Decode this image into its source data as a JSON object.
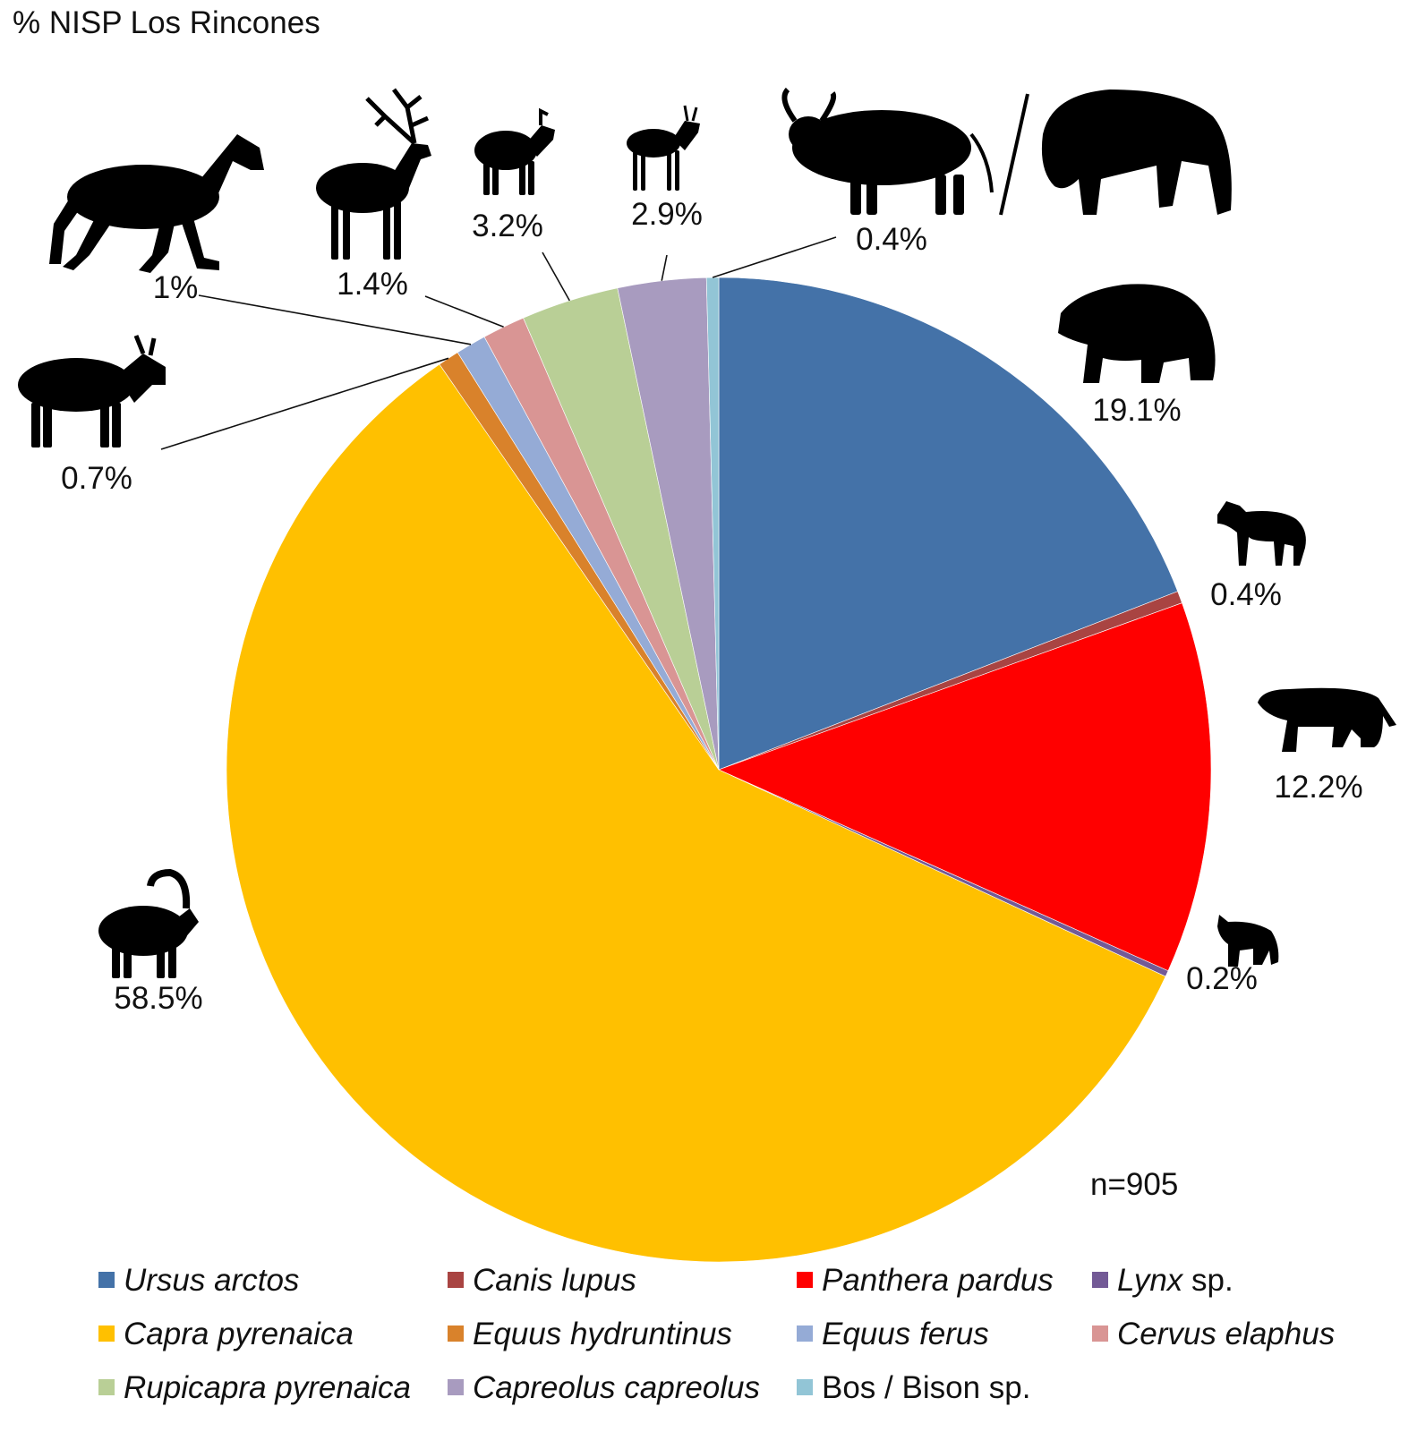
{
  "chart_data": {
    "type": "pie",
    "title": "% NISP Los Rincones",
    "note": "n=905",
    "slices": [
      {
        "name": "Ursus arctos",
        "value": 19.1,
        "label": "19.1%",
        "color": "#4472a8",
        "icon": "bear-icon"
      },
      {
        "name": "Canis lupus",
        "value": 0.4,
        "label": "0.4%",
        "color": "#a94442",
        "icon": "wolf-icon"
      },
      {
        "name": "Panthera pardus",
        "value": 12.2,
        "label": "12.2%",
        "color": "#ff0000",
        "icon": "leopard-icon"
      },
      {
        "name": "Lynx sp.",
        "value": 0.2,
        "label": "0.2%",
        "color": "#735a96",
        "icon": "lynx-icon"
      },
      {
        "name": "Capra pyrenaica",
        "value": 58.5,
        "label": "58.5%",
        "color": "#ffc000",
        "icon": "ibex-icon"
      },
      {
        "name": "Equus hydruntinus",
        "value": 0.7,
        "label": "0.7%",
        "color": "#d9822b",
        "icon": "ass-icon"
      },
      {
        "name": "Equus ferus",
        "value": 1.0,
        "label": "1%",
        "color": "#95abd6",
        "icon": "horse-icon"
      },
      {
        "name": "Cervus elaphus",
        "value": 1.4,
        "label": "1.4%",
        "color": "#d99594",
        "icon": "deer-icon"
      },
      {
        "name": "Rupicapra pyrenaica",
        "value": 3.2,
        "label": "3.2%",
        "color": "#b9cf96",
        "icon": "chamois-icon"
      },
      {
        "name": "Capreolus capreolus",
        "value": 2.9,
        "label": "2.9%",
        "color": "#a89bbf",
        "icon": "roe-deer-icon"
      },
      {
        "name": "Bos / Bison sp.",
        "value": 0.4,
        "label": "0.4%",
        "color": "#92c5d6",
        "icon": "aurochs-bison-icon"
      }
    ],
    "legend": {
      "placement": "bottom",
      "entries": [
        {
          "italic": "Ursus arctos",
          "suffix": ""
        },
        {
          "italic": "Canis lupus",
          "suffix": ""
        },
        {
          "italic": "Panthera pardus",
          "suffix": ""
        },
        {
          "italic": "Lynx",
          "suffix": " sp."
        },
        {
          "italic": "Capra pyrenaica",
          "suffix": ""
        },
        {
          "italic": "Equus hydruntinus",
          "suffix": ""
        },
        {
          "italic": "Equus ferus",
          "suffix": ""
        },
        {
          "italic": "Cervus elaphus",
          "suffix": ""
        },
        {
          "italic": "Rupicapra pyrenaica",
          "suffix": ""
        },
        {
          "italic": "Capreolus capreolus",
          "suffix": ""
        },
        {
          "italic": "",
          "suffix": "Bos / Bison sp."
        }
      ]
    }
  }
}
